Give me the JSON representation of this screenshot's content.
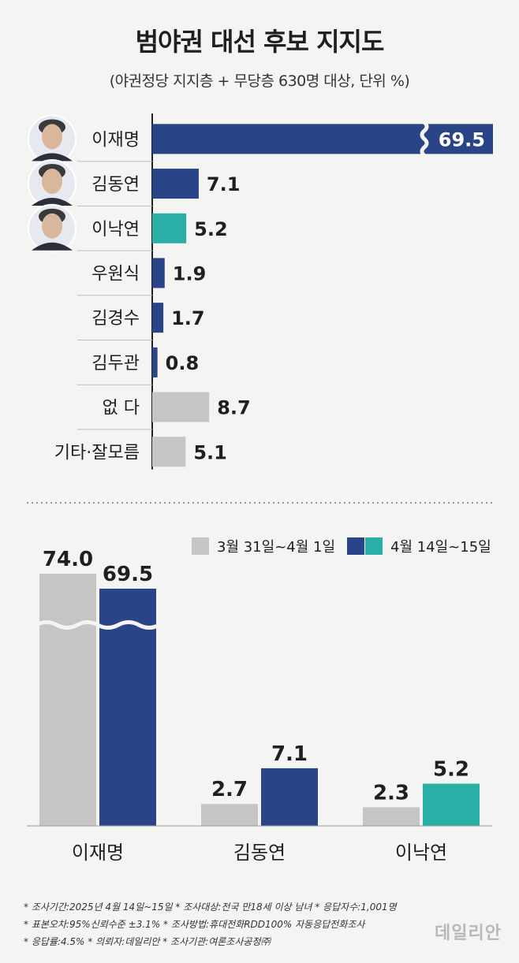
{
  "title": "범야권 대선 후보 지지도",
  "subtitle": "(야권정당 지지층 + 무당층 630명 대상, 단위 %)",
  "colors": {
    "blue": "#2a4488",
    "teal": "#2aafa7",
    "gray": "#c5c5c5",
    "background": "#f4f4f2"
  },
  "chart_data": [
    {
      "type": "bar",
      "orientation": "horizontal",
      "categories": [
        "이재명",
        "김동연",
        "이낙연",
        "우원식",
        "김경수",
        "김두관",
        "없  다",
        "기타·잘모름"
      ],
      "values": [
        69.5,
        7.1,
        5.2,
        1.9,
        1.7,
        0.8,
        8.7,
        5.1
      ],
      "bar_colors": [
        "blue",
        "blue",
        "teal",
        "blue",
        "blue",
        "blue",
        "gray",
        "gray"
      ],
      "axis_break_on": "이재명",
      "photos_for": [
        "이재명",
        "김동연",
        "이낙연"
      ]
    },
    {
      "type": "bar",
      "orientation": "vertical",
      "categories": [
        "이재명",
        "김동연",
        "이낙연"
      ],
      "series": [
        {
          "name": "3월 31일~4월 1일",
          "values": [
            74.0,
            2.7,
            2.3
          ],
          "colors": [
            "gray",
            "gray",
            "gray"
          ]
        },
        {
          "name": "4월 14일~15일",
          "values": [
            69.5,
            7.1,
            5.2
          ],
          "colors": [
            "blue",
            "blue",
            "teal"
          ]
        }
      ],
      "axis_break_on": "이재명",
      "legend": "top-right"
    }
  ],
  "notes": [
    "* 조사기간:2025년 4월 14일~15일  * 조사대상:전국 만18세 이상 남녀  * 응답자수:1,001명",
    "* 표본오차:95%신뢰수준 ±3.1%  * 조사방법:휴대전화RDD100% 자동응답전화조사",
    "* 응답률:4.5%  * 의뢰자:데일리안  * 조사기관:여론조사공정㈜"
  ],
  "watermark": "데일리안"
}
